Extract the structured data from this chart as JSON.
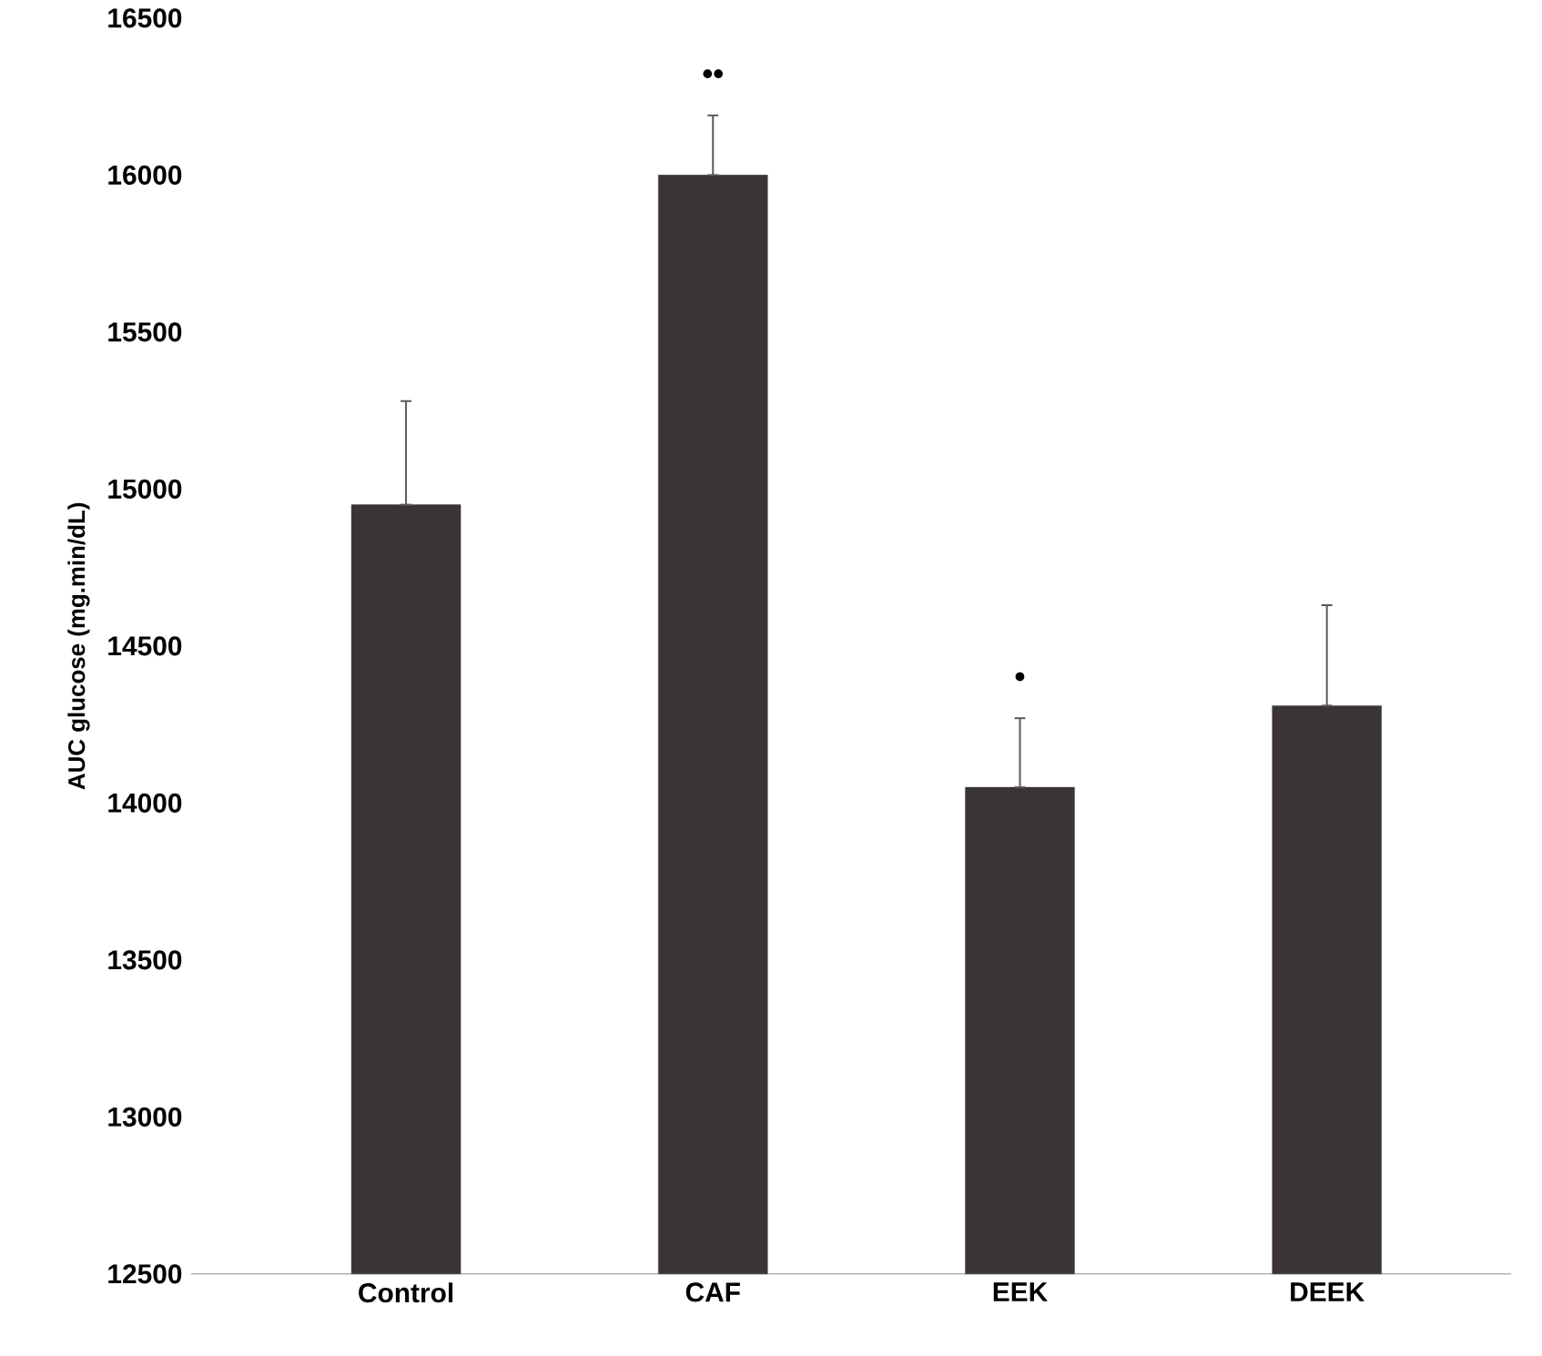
{
  "chart_data": {
    "type": "bar",
    "ylabel": "AUC glucose (mg.min/dL)",
    "categories": [
      "Control",
      "CAF",
      "EEK",
      "DEEK"
    ],
    "values": [
      14950,
      16000,
      14050,
      14310
    ],
    "errors": [
      [
        14950,
        15280
      ],
      [
        16000,
        16190
      ],
      [
        14050,
        14270
      ],
      [
        14310,
        14630
      ]
    ],
    "color": "#3a3438",
    "ylim": [
      12500,
      16500
    ],
    "yticks": [
      12500,
      13000,
      13500,
      14000,
      14500,
      15000,
      15500,
      16000,
      16500
    ],
    "annotations": [
      "••",
      "•"
    ]
  }
}
